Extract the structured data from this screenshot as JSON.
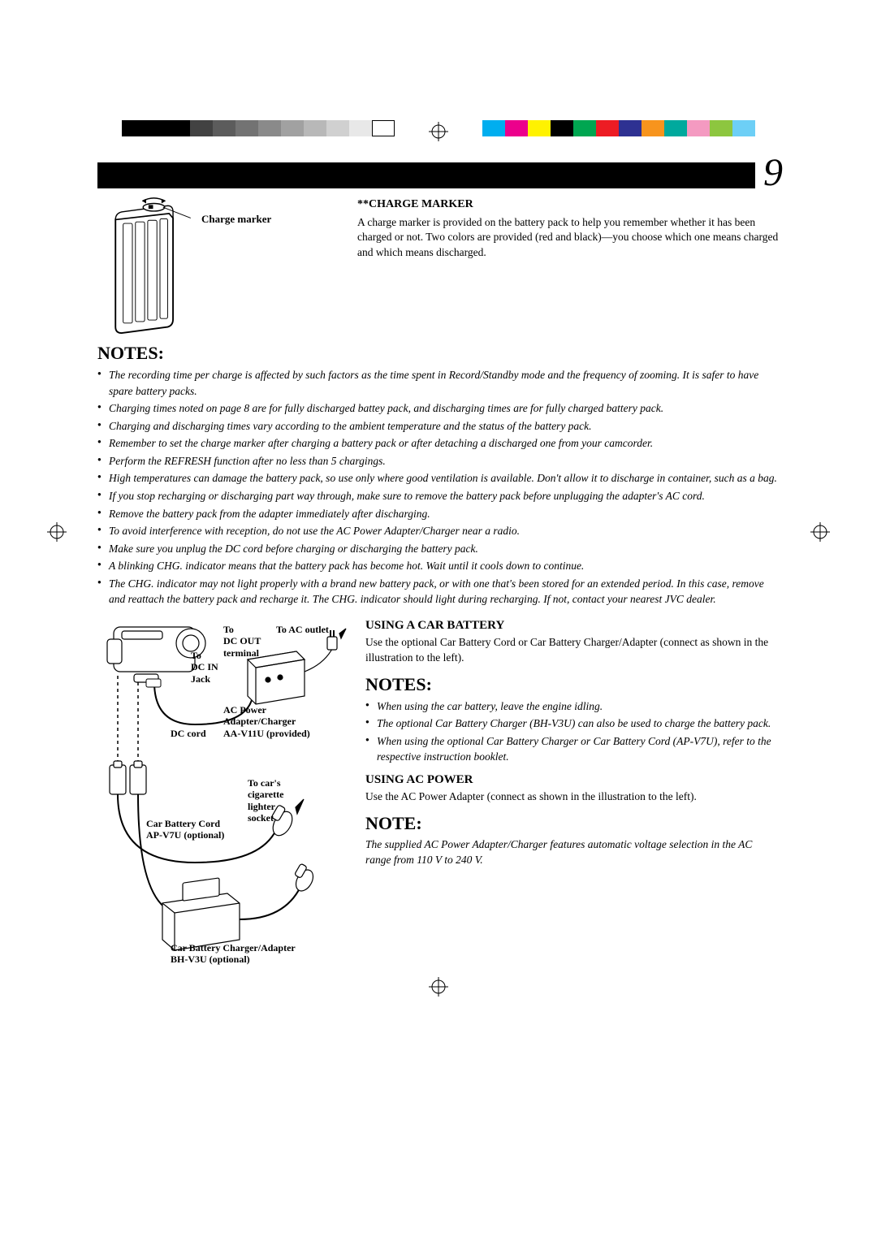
{
  "page": {
    "number": "9"
  },
  "colorBars": {
    "left": [
      "#000000",
      "#000000",
      "#000000",
      "#424242",
      "#5c5c5c",
      "#737373",
      "#8a8a8a",
      "#a1a1a1",
      "#b8b8b8",
      "#d0d0d0",
      "#e8e8e8",
      "#ffffff"
    ],
    "right": [
      "#00aeef",
      "#ec008c",
      "#fff200",
      "#000000",
      "#00a651",
      "#ed1c24",
      "#2e3192",
      "#f7941d",
      "#00a99d",
      "#f49ac1",
      "#8dc63f",
      "#6dcff6"
    ]
  },
  "figure1": {
    "label": "Charge marker"
  },
  "chargeMarker": {
    "heading": "**CHARGE MARKER",
    "body": "A charge marker is provided on the battery pack to help you remember whether it has been charged or not. Two colors are provided (red and black)—you choose which one means charged and which means discharged."
  },
  "notes1": {
    "heading": "NOTES:",
    "items": [
      "The recording time per charge is affected by such factors as the time spent in Record/Standby mode and the frequency of zooming. It is safer to have spare battery packs.",
      "Charging times noted on page 8 are for fully discharged battey pack, and discharging times are for fully charged battery pack.",
      "Charging and discharging times vary according to the ambient temperature and the status of the battery pack.",
      "Remember to set the charge marker after charging a battery pack or after detaching a discharged one from your camcorder.",
      "Perform the REFRESH function after no less than 5 chargings.",
      "High temperatures can damage the battery pack, so use only where good ventilation is available. Don't allow it to discharge in container, such as a bag.",
      "If you stop recharging or discharging part way through, make sure to remove the battery pack before unplugging the adapter's AC cord.",
      "Remove the battery pack from the adapter immediately after discharging.",
      "To avoid interference with reception, do not use the AC Power Adapter/Charger near a radio.",
      "Make sure you unplug the DC cord before charging or discharging the battery pack.",
      "A blinking CHG. indicator means that the battery pack has become hot. Wait until it cools down to continue.",
      "The CHG. indicator may not light properly with a brand new battery pack, or with one that's been stored for an extended period. In this case, remove and reattach the battery pack and recharge it. The CHG. indicator should light during recharging. If not, contact your nearest JVC dealer."
    ]
  },
  "diagram": {
    "labels": {
      "toDcOut": "To\nDC OUT\nterminal",
      "toAcOutlet": "To AC outlet",
      "toDcIn": "To\nDC IN\nJack",
      "acPower": "AC Power\nAdapter/Charger\nAA-V11U (provided)",
      "dcCord": "DC cord",
      "toCigarette": "To car's\ncigarette\nlighter\nsocket",
      "carBatteryCord": "Car Battery Cord\nAP-V7U (optional)",
      "carBatteryCharger": "Car Battery Charger/Adapter\nBH-V3U (optional)"
    }
  },
  "carBattery": {
    "heading": "USING A CAR BATTERY",
    "body": "Use the optional Car Battery Cord or Car Battery Charger/Adapter (connect as shown in the illustration to the left)."
  },
  "notes2": {
    "heading": "NOTES:",
    "items": [
      "When using the car battery, leave the engine idling.",
      "The optional Car Battery Charger (BH-V3U) can also be used to charge the battery pack.",
      "When using the optional Car Battery Charger or Car Battery Cord (AP-V7U), refer to the respective instruction booklet."
    ]
  },
  "acPower": {
    "heading": "USING AC POWER",
    "body": "Use the AC Power Adapter (connect as shown in the illustration to the left)."
  },
  "note3": {
    "heading": "NOTE:",
    "body": "The supplied AC Power Adapter/Charger features automatic voltage selection in the AC range from 110 V to 240 V."
  }
}
